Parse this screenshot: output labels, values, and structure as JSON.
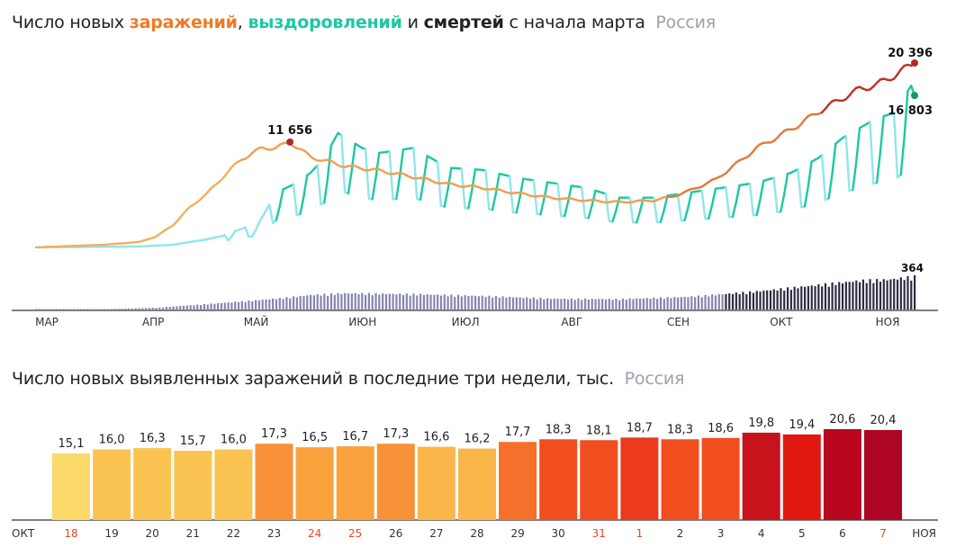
{
  "charts": {
    "top": {
      "title": {
        "prefix": "Число новых ",
        "infections": "заражений",
        "sep1": ", ",
        "recoveries": "выздоровлений",
        "and": " и ",
        "deaths": "смертей",
        "suffix": " с начала марта",
        "region": "Россия"
      },
      "colors": {
        "infections": "#f07a24",
        "recoveries": "#1ec8a0",
        "deaths": "#2c2c54"
      },
      "x_labels": [
        "МАР",
        "АПР",
        "МАЙ",
        "ИЮН",
        "ИЮЛ",
        "АВГ",
        "СЕН",
        "ОКТ",
        "НОЯ"
      ],
      "annotations": {
        "peak_may": "11 656",
        "infections_last": "20 396",
        "recoveries_last": "16 803",
        "deaths_last": "364"
      }
    },
    "bottom": {
      "title": {
        "main": "Число новых выявленных заражений в последние три недели, тыс.",
        "region": "Россия"
      },
      "month_left": "ОКТ",
      "month_right": "НОЯ"
    }
  },
  "chart_data": [
    {
      "type": "line",
      "x_range": [
        "2020-03-01",
        "2020-11-07"
      ],
      "ylim": [
        0,
        22000
      ],
      "series": [
        {
          "name": "заражений",
          "anchors": [
            [
              0,
              5
            ],
            [
              20,
              300
            ],
            [
              30,
              600
            ],
            [
              35,
              1200
            ],
            [
              40,
              2500
            ],
            [
              45,
              4500
            ],
            [
              50,
              6000
            ],
            [
              55,
              8000
            ],
            [
              60,
              9800
            ],
            [
              66,
              11000
            ],
            [
              70,
              11000
            ],
            [
              74,
              11656
            ],
            [
              80,
              10000
            ],
            [
              90,
              9000
            ],
            [
              100,
              8500
            ],
            [
              110,
              7800
            ],
            [
              120,
              7000
            ],
            [
              130,
              6600
            ],
            [
              140,
              6000
            ],
            [
              150,
              5500
            ],
            [
              160,
              5200
            ],
            [
              170,
              5000
            ],
            [
              180,
              5200
            ],
            [
              185,
              5600
            ],
            [
              190,
              6200
            ],
            [
              198,
              7500
            ],
            [
              205,
              9500
            ],
            [
              210,
              11000
            ],
            [
              215,
              12000
            ],
            [
              222,
              13500
            ],
            [
              228,
              15000
            ],
            [
              235,
              16500
            ],
            [
              240,
              17500
            ],
            [
              245,
              18000
            ],
            [
              250,
              19000
            ],
            [
              256,
              20396
            ]
          ]
        },
        {
          "name": "выздоровлений",
          "anchors": [
            [
              0,
              0
            ],
            [
              30,
              100
            ],
            [
              40,
              300
            ],
            [
              50,
              900
            ],
            [
              57,
              1500
            ],
            [
              65,
              2500
            ],
            [
              70,
              5500
            ],
            [
              76,
              6500
            ],
            [
              80,
              7500
            ],
            [
              84,
              9000
            ],
            [
              88,
              11500
            ],
            [
              95,
              10000
            ],
            [
              100,
              9500
            ],
            [
              110,
              10000
            ],
            [
              120,
              8000
            ],
            [
              130,
              7800
            ],
            [
              140,
              7000
            ],
            [
              150,
              6500
            ],
            [
              160,
              6000
            ],
            [
              170,
              5000
            ],
            [
              180,
              5000
            ],
            [
              190,
              5500
            ],
            [
              200,
              6000
            ],
            [
              210,
              6500
            ],
            [
              215,
              7000
            ],
            [
              220,
              7500
            ],
            [
              228,
              9000
            ],
            [
              235,
              11000
            ],
            [
              240,
              12000
            ],
            [
              245,
              13000
            ],
            [
              250,
              13500
            ],
            [
              256,
              16803
            ]
          ]
        },
        {
          "name": "смертей",
          "anchors": [
            [
              0,
              0
            ],
            [
              20,
              3
            ],
            [
              35,
              20
            ],
            [
              50,
              60
            ],
            [
              60,
              90
            ],
            [
              70,
              120
            ],
            [
              80,
              160
            ],
            [
              90,
              180
            ],
            [
              110,
              170
            ],
            [
              130,
              150
            ],
            [
              150,
              120
            ],
            [
              170,
              115
            ],
            [
              190,
              140
            ],
            [
              210,
              200
            ],
            [
              220,
              240
            ],
            [
              230,
              280
            ],
            [
              240,
              320
            ],
            [
              248,
              330
            ],
            [
              256,
              364
            ]
          ]
        }
      ],
      "labels": {
        "peak": 11656,
        "infections_last": 20396,
        "recoveries_last": 16803,
        "deaths_last": 364
      }
    },
    {
      "type": "bar",
      "categories": [
        "18",
        "19",
        "20",
        "21",
        "22",
        "23",
        "24",
        "25",
        "26",
        "27",
        "28",
        "29",
        "30",
        "31",
        "1",
        "2",
        "3",
        "4",
        "5",
        "6",
        "7"
      ],
      "values": [
        15.1,
        16.0,
        16.3,
        15.7,
        16.0,
        17.3,
        16.5,
        16.7,
        17.3,
        16.6,
        16.2,
        17.7,
        18.3,
        18.1,
        18.7,
        18.3,
        18.6,
        19.8,
        19.4,
        20.6,
        20.4
      ],
      "value_labels": [
        "15,1",
        "16,0",
        "16,3",
        "15,7",
        "16,0",
        "17,3",
        "16,5",
        "16,7",
        "17,3",
        "16,6",
        "16,2",
        "17,7",
        "18,3",
        "18,1",
        "18,7",
        "18,3",
        "18,6",
        "19,8",
        "19,4",
        "20,6",
        "20,4"
      ],
      "colors": [
        "#fbd96b",
        "#fbc452",
        "#fbc452",
        "#fbc452",
        "#fbc452",
        "#f8923a",
        "#f9a23c",
        "#f9a23c",
        "#f8923a",
        "#fbb64b",
        "#fbb64b",
        "#f5702a",
        "#f24d1f",
        "#f24d1f",
        "#ec3a1c",
        "#f24d1f",
        "#f24d1f",
        "#c8121c",
        "#e01810",
        "#b8071e",
        "#ae0525"
      ],
      "weekend_days": [
        "18",
        "24",
        "25",
        "31",
        "1",
        "7"
      ],
      "ylim": [
        0,
        22
      ]
    }
  ]
}
